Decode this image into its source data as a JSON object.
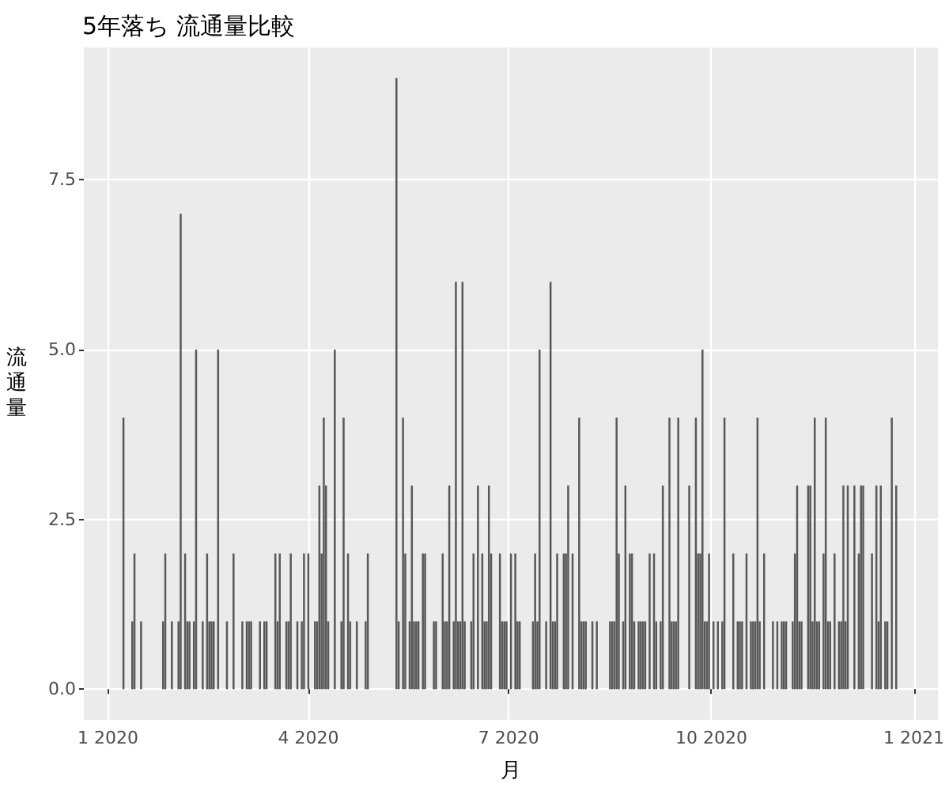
{
  "chart_data": {
    "type": "bar",
    "title": "5年落ち 流通量比較",
    "xlabel": "月",
    "ylabel": "流通量",
    "x": [
      "2020-01-08",
      "2020-01-12",
      "2020-01-13",
      "2020-01-16",
      "2020-01-26",
      "2020-01-27",
      "2020-01-30",
      "2020-02-02",
      "2020-02-03",
      "2020-02-05",
      "2020-02-06",
      "2020-02-07",
      "2020-02-09",
      "2020-02-10",
      "2020-02-13",
      "2020-02-15",
      "2020-02-16",
      "2020-02-17",
      "2020-02-18",
      "2020-02-20",
      "2020-02-24",
      "2020-02-27",
      "2020-03-02",
      "2020-03-04",
      "2020-03-05",
      "2020-03-06",
      "2020-03-10",
      "2020-03-12",
      "2020-03-13",
      "2020-03-17",
      "2020-03-18",
      "2020-03-19",
      "2020-03-22",
      "2020-03-23",
      "2020-03-24",
      "2020-03-27",
      "2020-03-29",
      "2020-03-30",
      "2020-04-01",
      "2020-04-04",
      "2020-04-05",
      "2020-04-06",
      "2020-04-07",
      "2020-04-08",
      "2020-04-09",
      "2020-04-10",
      "2020-04-13",
      "2020-04-16",
      "2020-04-17",
      "2020-04-19",
      "2020-04-20",
      "2020-04-23",
      "2020-04-27",
      "2020-04-28",
      "2020-05-11",
      "2020-05-12",
      "2020-05-14",
      "2020-05-15",
      "2020-05-17",
      "2020-05-18",
      "2020-05-19",
      "2020-05-20",
      "2020-05-21",
      "2020-05-23",
      "2020-05-24",
      "2020-05-28",
      "2020-05-29",
      "2020-06-01",
      "2020-06-02",
      "2020-06-03",
      "2020-06-04",
      "2020-06-06",
      "2020-06-07",
      "2020-06-08",
      "2020-06-09",
      "2020-06-10",
      "2020-06-11",
      "2020-06-14",
      "2020-06-15",
      "2020-06-17",
      "2020-06-19",
      "2020-06-20",
      "2020-06-21",
      "2020-06-22",
      "2020-06-23",
      "2020-06-27",
      "2020-06-28",
      "2020-06-29",
      "2020-06-30",
      "2020-07-02",
      "2020-07-04",
      "2020-07-05",
      "2020-07-06",
      "2020-07-12",
      "2020-07-13",
      "2020-07-14",
      "2020-07-15",
      "2020-07-18",
      "2020-07-20",
      "2020-07-21",
      "2020-07-22",
      "2020-07-23",
      "2020-07-26",
      "2020-07-27",
      "2020-07-28",
      "2020-07-30",
      "2020-08-02",
      "2020-08-03",
      "2020-08-04",
      "2020-08-05",
      "2020-08-08",
      "2020-08-10",
      "2020-08-16",
      "2020-08-17",
      "2020-08-18",
      "2020-08-19",
      "2020-08-20",
      "2020-08-22",
      "2020-08-23",
      "2020-08-25",
      "2020-08-26",
      "2020-08-27",
      "2020-08-29",
      "2020-08-30",
      "2020-08-31",
      "2020-09-01",
      "2020-09-03",
      "2020-09-05",
      "2020-09-06",
      "2020-09-08",
      "2020-09-09",
      "2020-09-12",
      "2020-09-13",
      "2020-09-14",
      "2020-09-15",
      "2020-09-16",
      "2020-09-21",
      "2020-09-24",
      "2020-09-25",
      "2020-09-26",
      "2020-09-27",
      "2020-09-28",
      "2020-09-29",
      "2020-09-30",
      "2020-10-02",
      "2020-10-04",
      "2020-10-06",
      "2020-10-07",
      "2020-10-11",
      "2020-10-13",
      "2020-10-14",
      "2020-10-15",
      "2020-10-17",
      "2020-10-19",
      "2020-10-20",
      "2020-10-21",
      "2020-10-22",
      "2020-10-23",
      "2020-10-25",
      "2020-10-29",
      "2020-10-31",
      "2020-11-02",
      "2020-11-03",
      "2020-11-04",
      "2020-11-07",
      "2020-11-08",
      "2020-11-09",
      "2020-11-10",
      "2020-11-11",
      "2020-11-14",
      "2020-11-15",
      "2020-11-16",
      "2020-11-17",
      "2020-11-18",
      "2020-11-19",
      "2020-11-21",
      "2020-11-22",
      "2020-11-23",
      "2020-11-24",
      "2020-11-26",
      "2020-11-28",
      "2020-11-29",
      "2020-11-30",
      "2020-12-01",
      "2020-12-02",
      "2020-12-05",
      "2020-12-07",
      "2020-12-08",
      "2020-12-09",
      "2020-12-13",
      "2020-12-15",
      "2020-12-16",
      "2020-12-17",
      "2020-12-19",
      "2020-12-20",
      "2020-12-22",
      "2020-12-24"
    ],
    "values": [
      4,
      1,
      2,
      1,
      1,
      2,
      1,
      1,
      7,
      2,
      1,
      1,
      1,
      5,
      1,
      2,
      1,
      1,
      1,
      5,
      1,
      2,
      1,
      1,
      1,
      1,
      1,
      1,
      1,
      2,
      1,
      2,
      1,
      1,
      2,
      1,
      1,
      2,
      2,
      1,
      1,
      3,
      2,
      4,
      3,
      1,
      5,
      1,
      4,
      2,
      1,
      1,
      1,
      2,
      9,
      1,
      4,
      2,
      1,
      3,
      1,
      1,
      1,
      2,
      2,
      1,
      1,
      2,
      1,
      1,
      3,
      1,
      6,
      1,
      1,
      6,
      1,
      1,
      2,
      3,
      2,
      1,
      1,
      3,
      2,
      2,
      1,
      1,
      1,
      2,
      2,
      1,
      1,
      1,
      2,
      1,
      5,
      1,
      6,
      1,
      1,
      2,
      2,
      2,
      3,
      2,
      4,
      1,
      1,
      1,
      1,
      1,
      1,
      1,
      1,
      4,
      2,
      1,
      3,
      2,
      2,
      1,
      1,
      1,
      1,
      1,
      2,
      2,
      1,
      1,
      3,
      4,
      1,
      1,
      1,
      4,
      3,
      4,
      2,
      2,
      5,
      1,
      1,
      2,
      1,
      1,
      1,
      4,
      2,
      1,
      1,
      1,
      2,
      1,
      1,
      1,
      4,
      1,
      2,
      1,
      1,
      1,
      1,
      1,
      1,
      2,
      3,
      1,
      1,
      3,
      3,
      1,
      4,
      1,
      1,
      2,
      4,
      1,
      1,
      2,
      1,
      1,
      3,
      1,
      3,
      3,
      2,
      3,
      3,
      2,
      3,
      1,
      3,
      1,
      1,
      4,
      3
    ],
    "color": "#595959",
    "xlim": [
      "2019-12-21",
      "2021-01-12"
    ],
    "xticks": [
      {
        "value": "2020-01-01",
        "label": "1 2020"
      },
      {
        "value": "2020-04-01",
        "label": "4 2020"
      },
      {
        "value": "2020-07-01",
        "label": "7 2020"
      },
      {
        "value": "2020-10-01",
        "label": "10 2020"
      },
      {
        "value": "2021-01-01",
        "label": "1 2021"
      }
    ],
    "ylim": [
      -0.45,
      9.45
    ],
    "yticks": [
      {
        "value": 0,
        "label": "0.0"
      },
      {
        "value": 2.5,
        "label": "2.5"
      },
      {
        "value": 5,
        "label": "5.0"
      },
      {
        "value": 7.5,
        "label": "7.5"
      }
    ],
    "grid": true
  }
}
